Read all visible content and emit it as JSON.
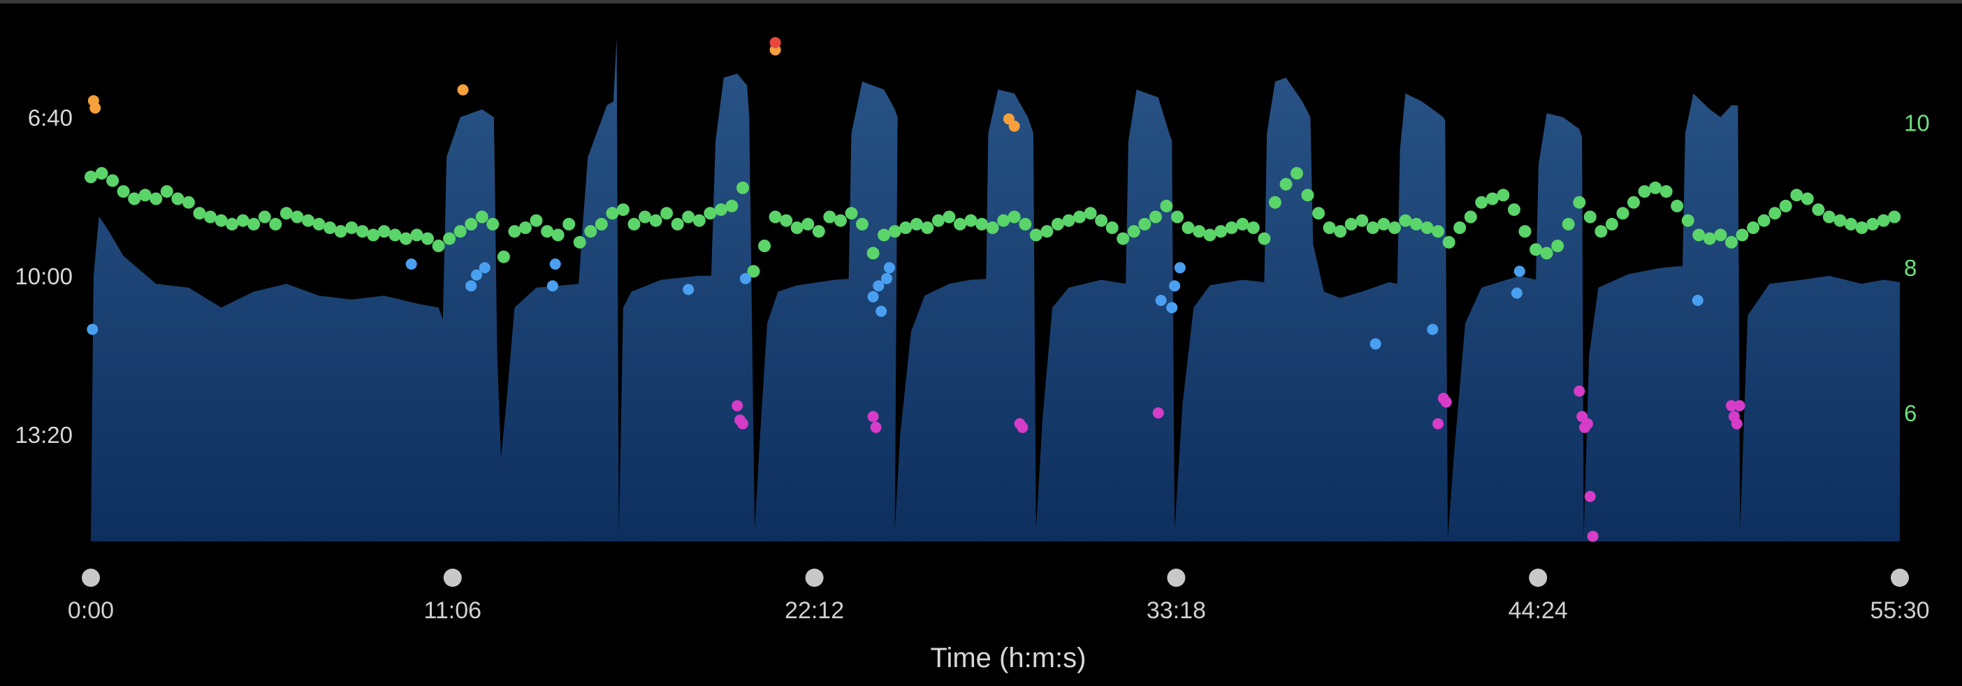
{
  "chart_data": {
    "type": "area",
    "xlabel": "Time (h:m:s)",
    "x_ticks": [
      "0:00",
      "11:06",
      "22:12",
      "33:18",
      "44:24",
      "55:30"
    ],
    "x_range_seconds": [
      0,
      3330
    ],
    "left_axis": {
      "unit": "pace (min:sec)",
      "ticks": [
        "6:40",
        "10:00",
        "13:20"
      ],
      "tick_values_seconds": [
        400,
        600,
        800
      ],
      "range_seconds": [
        305,
        935
      ],
      "inverted": true
    },
    "right_axis": {
      "ticks": [
        "10",
        "8",
        "6"
      ],
      "tick_values": [
        10,
        8,
        6
      ],
      "range": [
        4.23,
        11.11
      ]
    },
    "colors": {
      "area_top": "#2a5588",
      "area_bottom": "#0d2f5e",
      "left_ticks": "#d8d8d8",
      "right_ticks": "#6ee07f",
      "green_points": "#5bd46a",
      "blue_points": "#4a9ff0",
      "magenta_points": "#d63cc8",
      "orange_points": "#f5a03c",
      "red_points": "#e8483c",
      "x_markers": "#c8c8c8"
    },
    "area_series_pace_seconds": [
      [
        0,
        930
      ],
      [
        5,
        600
      ],
      [
        15,
        525
      ],
      [
        30,
        540
      ],
      [
        60,
        575
      ],
      [
        120,
        610
      ],
      [
        180,
        615
      ],
      [
        240,
        640
      ],
      [
        300,
        620
      ],
      [
        360,
        610
      ],
      [
        420,
        625
      ],
      [
        480,
        630
      ],
      [
        540,
        625
      ],
      [
        600,
        635
      ],
      [
        640,
        640
      ],
      [
        648,
        655
      ],
      [
        655,
        450
      ],
      [
        680,
        400
      ],
      [
        720,
        390
      ],
      [
        742,
        400
      ],
      [
        748,
        700
      ],
      [
        755,
        830
      ],
      [
        765,
        760
      ],
      [
        780,
        640
      ],
      [
        820,
        615
      ],
      [
        870,
        612
      ],
      [
        898,
        610
      ],
      [
        905,
        540
      ],
      [
        915,
        450
      ],
      [
        950,
        385
      ],
      [
        962,
        380
      ],
      [
        968,
        300
      ],
      [
        972,
        930
      ],
      [
        980,
        640
      ],
      [
        995,
        620
      ],
      [
        1050,
        605
      ],
      [
        1120,
        600
      ],
      [
        1142,
        600
      ],
      [
        1150,
        430
      ],
      [
        1165,
        350
      ],
      [
        1190,
        345
      ],
      [
        1208,
        360
      ],
      [
        1212,
        400
      ],
      [
        1222,
        920
      ],
      [
        1232,
        800
      ],
      [
        1245,
        660
      ],
      [
        1265,
        620
      ],
      [
        1300,
        612
      ],
      [
        1370,
        605
      ],
      [
        1395,
        604
      ],
      [
        1400,
        420
      ],
      [
        1420,
        355
      ],
      [
        1460,
        365
      ],
      [
        1480,
        390
      ],
      [
        1485,
        400
      ],
      [
        1480,
        920
      ],
      [
        1490,
        800
      ],
      [
        1510,
        670
      ],
      [
        1535,
        625
      ],
      [
        1580,
        610
      ],
      [
        1620,
        605
      ],
      [
        1648,
        604
      ],
      [
        1652,
        420
      ],
      [
        1670,
        365
      ],
      [
        1700,
        370
      ],
      [
        1725,
        400
      ],
      [
        1735,
        420
      ],
      [
        1740,
        920
      ],
      [
        1752,
        780
      ],
      [
        1770,
        640
      ],
      [
        1800,
        615
      ],
      [
        1860,
        605
      ],
      [
        1905,
        610
      ],
      [
        1910,
        430
      ],
      [
        1925,
        365
      ],
      [
        1965,
        375
      ],
      [
        1985,
        420
      ],
      [
        1990,
        430
      ],
      [
        1995,
        920
      ],
      [
        2010,
        760
      ],
      [
        2030,
        640
      ],
      [
        2060,
        612
      ],
      [
        2120,
        605
      ],
      [
        2160,
        608
      ],
      [
        2165,
        420
      ],
      [
        2180,
        355
      ],
      [
        2200,
        350
      ],
      [
        2230,
        380
      ],
      [
        2245,
        400
      ],
      [
        2250,
        560
      ],
      [
        2270,
        620
      ],
      [
        2300,
        628
      ],
      [
        2340,
        620
      ],
      [
        2390,
        608
      ],
      [
        2405,
        610
      ],
      [
        2410,
        440
      ],
      [
        2420,
        370
      ],
      [
        2450,
        380
      ],
      [
        2490,
        400
      ],
      [
        2493,
        405
      ],
      [
        2498,
        930
      ],
      [
        2510,
        820
      ],
      [
        2530,
        660
      ],
      [
        2560,
        615
      ],
      [
        2630,
        600
      ],
      [
        2660,
        605
      ],
      [
        2665,
        460
      ],
      [
        2680,
        395
      ],
      [
        2710,
        400
      ],
      [
        2740,
        415
      ],
      [
        2745,
        425
      ],
      [
        2748,
        930
      ],
      [
        2758,
        700
      ],
      [
        2775,
        615
      ],
      [
        2830,
        598
      ],
      [
        2890,
        590
      ],
      [
        2920,
        588
      ],
      [
        2930,
        588
      ],
      [
        2935,
        420
      ],
      [
        2950,
        370
      ],
      [
        2980,
        390
      ],
      [
        3000,
        400
      ],
      [
        3020,
        385
      ],
      [
        3032,
        385
      ],
      [
        3036,
        920
      ],
      [
        3050,
        650
      ],
      [
        3090,
        610
      ],
      [
        3150,
        605
      ],
      [
        3200,
        600
      ],
      [
        3260,
        610
      ],
      [
        3300,
        605
      ],
      [
        3330,
        608
      ],
      [
        3330,
        935
      ]
    ],
    "right_series_points": {
      "green": [
        [
          0,
          9.25
        ],
        [
          20,
          9.3
        ],
        [
          40,
          9.2
        ],
        [
          60,
          9.05
        ],
        [
          80,
          8.95
        ],
        [
          100,
          9.0
        ],
        [
          120,
          8.95
        ],
        [
          140,
          9.05
        ],
        [
          160,
          8.95
        ],
        [
          180,
          8.9
        ],
        [
          200,
          8.75
        ],
        [
          220,
          8.7
        ],
        [
          240,
          8.65
        ],
        [
          260,
          8.6
        ],
        [
          280,
          8.65
        ],
        [
          300,
          8.6
        ],
        [
          320,
          8.7
        ],
        [
          340,
          8.6
        ],
        [
          360,
          8.75
        ],
        [
          380,
          8.7
        ],
        [
          400,
          8.65
        ],
        [
          420,
          8.6
        ],
        [
          440,
          8.55
        ],
        [
          460,
          8.5
        ],
        [
          480,
          8.55
        ],
        [
          500,
          8.5
        ],
        [
          520,
          8.45
        ],
        [
          540,
          8.5
        ],
        [
          560,
          8.45
        ],
        [
          580,
          8.4
        ],
        [
          600,
          8.45
        ],
        [
          620,
          8.4
        ],
        [
          640,
          8.3
        ],
        [
          660,
          8.4
        ],
        [
          680,
          8.5
        ],
        [
          700,
          8.6
        ],
        [
          720,
          8.7
        ],
        [
          740,
          8.6
        ],
        [
          760,
          8.15
        ],
        [
          780,
          8.5
        ],
        [
          800,
          8.55
        ],
        [
          820,
          8.65
        ],
        [
          840,
          8.5
        ],
        [
          860,
          8.45
        ],
        [
          880,
          8.6
        ],
        [
          900,
          8.35
        ],
        [
          920,
          8.5
        ],
        [
          940,
          8.6
        ],
        [
          960,
          8.75
        ],
        [
          980,
          8.8
        ],
        [
          1000,
          8.6
        ],
        [
          1020,
          8.7
        ],
        [
          1040,
          8.65
        ],
        [
          1060,
          8.75
        ],
        [
          1080,
          8.6
        ],
        [
          1100,
          8.7
        ],
        [
          1120,
          8.65
        ],
        [
          1140,
          8.75
        ],
        [
          1160,
          8.8
        ],
        [
          1180,
          8.85
        ],
        [
          1200,
          9.1
        ],
        [
          1220,
          7.95
        ],
        [
          1240,
          8.3
        ],
        [
          1260,
          8.7
        ],
        [
          1280,
          8.65
        ],
        [
          1300,
          8.55
        ],
        [
          1320,
          8.6
        ],
        [
          1340,
          8.5
        ],
        [
          1360,
          8.7
        ],
        [
          1380,
          8.65
        ],
        [
          1400,
          8.75
        ],
        [
          1420,
          8.6
        ],
        [
          1440,
          8.2
        ],
        [
          1460,
          8.45
        ],
        [
          1480,
          8.5
        ],
        [
          1500,
          8.55
        ],
        [
          1520,
          8.6
        ],
        [
          1540,
          8.55
        ],
        [
          1560,
          8.65
        ],
        [
          1580,
          8.7
        ],
        [
          1600,
          8.6
        ],
        [
          1620,
          8.65
        ],
        [
          1640,
          8.6
        ],
        [
          1660,
          8.55
        ],
        [
          1680,
          8.65
        ],
        [
          1700,
          8.7
        ],
        [
          1720,
          8.6
        ],
        [
          1740,
          8.45
        ],
        [
          1760,
          8.5
        ],
        [
          1780,
          8.6
        ],
        [
          1800,
          8.65
        ],
        [
          1820,
          8.7
        ],
        [
          1840,
          8.75
        ],
        [
          1860,
          8.65
        ],
        [
          1880,
          8.55
        ],
        [
          1900,
          8.4
        ],
        [
          1920,
          8.5
        ],
        [
          1940,
          8.6
        ],
        [
          1960,
          8.7
        ],
        [
          1980,
          8.85
        ],
        [
          2000,
          8.7
        ],
        [
          2020,
          8.55
        ],
        [
          2040,
          8.5
        ],
        [
          2060,
          8.45
        ],
        [
          2080,
          8.5
        ],
        [
          2100,
          8.55
        ],
        [
          2120,
          8.6
        ],
        [
          2140,
          8.55
        ],
        [
          2160,
          8.4
        ],
        [
          2180,
          8.9
        ],
        [
          2200,
          9.15
        ],
        [
          2220,
          9.3
        ],
        [
          2240,
          9.0
        ],
        [
          2260,
          8.75
        ],
        [
          2280,
          8.55
        ],
        [
          2300,
          8.5
        ],
        [
          2320,
          8.6
        ],
        [
          2340,
          8.65
        ],
        [
          2360,
          8.55
        ],
        [
          2380,
          8.6
        ],
        [
          2400,
          8.55
        ],
        [
          2420,
          8.65
        ],
        [
          2440,
          8.6
        ],
        [
          2460,
          8.55
        ],
        [
          2480,
          8.5
        ],
        [
          2500,
          8.35
        ],
        [
          2520,
          8.55
        ],
        [
          2540,
          8.7
        ],
        [
          2560,
          8.9
        ],
        [
          2580,
          8.95
        ],
        [
          2600,
          9.0
        ],
        [
          2620,
          8.8
        ],
        [
          2640,
          8.5
        ],
        [
          2660,
          8.25
        ],
        [
          2680,
          8.2
        ],
        [
          2700,
          8.3
        ],
        [
          2720,
          8.6
        ],
        [
          2740,
          8.9
        ],
        [
          2760,
          8.7
        ],
        [
          2780,
          8.5
        ],
        [
          2800,
          8.6
        ],
        [
          2820,
          8.75
        ],
        [
          2840,
          8.9
        ],
        [
          2860,
          9.05
        ],
        [
          2880,
          9.1
        ],
        [
          2900,
          9.05
        ],
        [
          2920,
          8.85
        ],
        [
          2940,
          8.65
        ],
        [
          2960,
          8.45
        ],
        [
          2980,
          8.4
        ],
        [
          3000,
          8.45
        ],
        [
          3020,
          8.35
        ],
        [
          3040,
          8.45
        ],
        [
          3060,
          8.55
        ],
        [
          3080,
          8.65
        ],
        [
          3100,
          8.75
        ],
        [
          3120,
          8.85
        ],
        [
          3140,
          9.0
        ],
        [
          3160,
          8.95
        ],
        [
          3180,
          8.8
        ],
        [
          3200,
          8.7
        ],
        [
          3220,
          8.65
        ],
        [
          3240,
          8.6
        ],
        [
          3260,
          8.55
        ],
        [
          3280,
          8.6
        ],
        [
          3300,
          8.65
        ],
        [
          3320,
          8.7
        ]
      ],
      "blue": [
        [
          3,
          7.15
        ],
        [
          590,
          8.05
        ],
        [
          700,
          7.75
        ],
        [
          710,
          7.9
        ],
        [
          725,
          8.0
        ],
        [
          850,
          7.75
        ],
        [
          855,
          8.05
        ],
        [
          1100,
          7.7
        ],
        [
          1205,
          7.85
        ],
        [
          1440,
          7.6
        ],
        [
          1450,
          7.75
        ],
        [
          1455,
          7.4
        ],
        [
          1465,
          7.85
        ],
        [
          1470,
          8.0
        ],
        [
          1970,
          7.55
        ],
        [
          1990,
          7.45
        ],
        [
          1995,
          7.75
        ],
        [
          2005,
          8.0
        ],
        [
          2365,
          6.95
        ],
        [
          2470,
          7.15
        ],
        [
          2625,
          7.65
        ],
        [
          2630,
          7.95
        ],
        [
          2958,
          7.55
        ]
      ],
      "magenta": [
        [
          1190,
          6.1
        ],
        [
          1195,
          5.9
        ],
        [
          1200,
          5.85
        ],
        [
          1440,
          5.95
        ],
        [
          1445,
          5.8
        ],
        [
          1710,
          5.85
        ],
        [
          1715,
          5.8
        ],
        [
          1965,
          6.0
        ],
        [
          2480,
          5.85
        ],
        [
          2490,
          6.2
        ],
        [
          2495,
          6.15
        ],
        [
          2740,
          6.3
        ],
        [
          2745,
          5.95
        ],
        [
          2750,
          5.8
        ],
        [
          2755,
          5.85
        ],
        [
          2760,
          4.85
        ],
        [
          2765,
          4.3
        ],
        [
          3020,
          6.1
        ],
        [
          3025,
          5.95
        ],
        [
          3030,
          5.85
        ],
        [
          3035,
          6.1
        ]
      ],
      "orange": [
        [
          5,
          10.3
        ],
        [
          8,
          10.2
        ],
        [
          685,
          10.45
        ],
        [
          1260,
          11.0
        ],
        [
          1690,
          10.05
        ],
        [
          1700,
          9.95
        ]
      ],
      "red": [
        [
          1260,
          11.1
        ]
      ]
    }
  }
}
